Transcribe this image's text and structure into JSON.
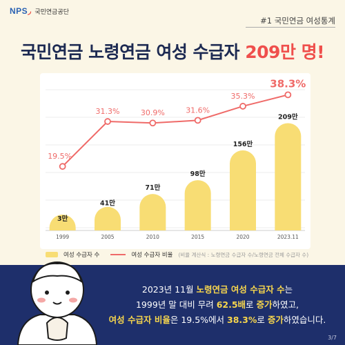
{
  "header": {
    "logo_text": "NPS",
    "org_name": "국민연금공단",
    "tag": "#1 국민연금 여성통계"
  },
  "headline": {
    "main": "국민연금 노령연금 여성 수급자 ",
    "accent": "209만 명!"
  },
  "colors": {
    "bar": "#f8dd74",
    "line": "#ef6a68",
    "navy": "#1e2f6b",
    "highlight": "#f7d64d",
    "headline": "#1d2a52"
  },
  "chart_data": {
    "type": "bar",
    "categories": [
      "1999",
      "2005",
      "2010",
      "2015",
      "2020",
      "2023.11"
    ],
    "series": [
      {
        "name": "여성 수급자 수",
        "type": "bar",
        "values": [
          3,
          41,
          71,
          98,
          156,
          209
        ],
        "labels": [
          "3만",
          "41만",
          "71만",
          "98만",
          "156만",
          "209만"
        ]
      },
      {
        "name": "여성 수급자 비율",
        "type": "line",
        "values": [
          19.5,
          31.3,
          30.9,
          31.6,
          35.3,
          38.3
        ],
        "labels": [
          "19.5%",
          "31.3%",
          "30.9%",
          "31.6%",
          "35.3%",
          "38.3%"
        ]
      }
    ],
    "grid": "horizontal",
    "legend_position": "bottom-left"
  },
  "legend": {
    "bar_label": "여성 수급자 수",
    "line_label": "여성 수급자 비율",
    "note": "(비율 계산식 : 노령연금 수급자 수/노령연금 전체 수급자 수)"
  },
  "message": {
    "l1_a": "2023년 11월 ",
    "l1_b": "노령연금 여성 수급자 수",
    "l1_c": "는",
    "l2_a": "1999년 말 대비 무려 ",
    "l2_b": "62.5배",
    "l2_c": "로 ",
    "l2_d": "증가",
    "l2_e": "하였고,",
    "l3_a": "여성 수급자 비율",
    "l3_b": "은 19.5%에서 ",
    "l3_c": "38.3%",
    "l3_d": "로 ",
    "l3_e": "증가",
    "l3_f": "하였습니다."
  },
  "page": "3/7"
}
